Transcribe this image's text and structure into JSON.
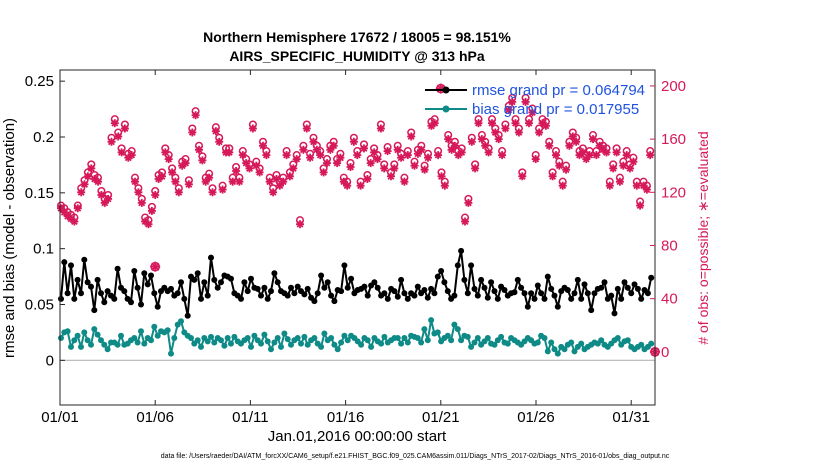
{
  "chart_data": {
    "type": "line",
    "title_line1": "Northern Hemisphere 17672 / 18005 = 98.151%",
    "title_line2": "AIRS_SPECIFIC_HUMIDITY @ 313 hPa",
    "xlabel": "Jan.01,2016 00:00:00 start",
    "ylabel_left": "rmse and bias (model - observation)",
    "ylabel_right": "# of obs: o=possible; ∗=evaluated",
    "x_ticks": [
      {
        "day": 0,
        "label": "01/01"
      },
      {
        "day": 5,
        "label": "01/06"
      },
      {
        "day": 10,
        "label": "01/11"
      },
      {
        "day": 15,
        "label": "01/16"
      },
      {
        "day": 20,
        "label": "01/21"
      },
      {
        "day": 25,
        "label": "01/26"
      },
      {
        "day": 30,
        "label": "01/31"
      }
    ],
    "xlim": [
      0,
      31.25
    ],
    "ylim_left": [
      -0.04,
      0.26
    ],
    "yticks_left": [
      {
        "value": 0,
        "label": "0"
      },
      {
        "value": 0.05,
        "label": "0.05"
      },
      {
        "value": 0.1,
        "label": "0.1"
      },
      {
        "value": 0.15,
        "label": "0.15"
      },
      {
        "value": 0.2,
        "label": "0.2"
      },
      {
        "value": 0.25,
        "label": "0.25"
      }
    ],
    "ylim_right": [
      -40,
      212
    ],
    "yticks_right": [
      {
        "value": 0,
        "label": "0"
      },
      {
        "value": 40,
        "label": "40"
      },
      {
        "value": 80,
        "label": "80"
      },
      {
        "value": 120,
        "label": "120"
      },
      {
        "value": 160,
        "label": "160"
      },
      {
        "value": 200,
        "label": "200"
      }
    ],
    "legend": [
      {
        "name": "rmse",
        "label": "rmse grand pr = 0.064794",
        "color": "#000000"
      },
      {
        "name": "bias",
        "label": "bias grand pr = 0.017955",
        "color": "#0e8a87"
      }
    ],
    "series": [
      {
        "name": "rmse",
        "color": "#000000",
        "values": [
          0.055,
          0.088,
          0.06,
          0.085,
          0.055,
          0.072,
          0.06,
          0.09,
          0.07,
          0.066,
          0.045,
          0.072,
          0.06,
          0.052,
          0.062,
          0.058,
          0.055,
          0.082,
          0.065,
          0.062,
          0.055,
          0.052,
          0.08,
          0.065,
          0.05,
          0.078,
          0.068,
          0.076,
          0.06,
          0.048,
          0.062,
          0.065,
          0.062,
          0.064,
          0.058,
          0.06,
          0.07,
          0.055,
          0.04,
          0.075,
          0.072,
          0.078,
          0.055,
          0.07,
          0.058,
          0.092,
          0.072,
          0.065,
          0.07,
          0.076,
          0.075,
          0.073,
          0.06,
          0.058,
          0.055,
          0.07,
          0.062,
          0.073,
          0.065,
          0.064,
          0.058,
          0.065,
          0.055,
          0.062,
          0.078,
          0.07,
          0.062,
          0.06,
          0.058,
          0.065,
          0.06,
          0.066,
          0.062,
          0.059,
          0.064,
          0.056,
          0.053,
          0.06,
          0.076,
          0.065,
          0.07,
          0.058,
          0.053,
          0.063,
          0.062,
          0.085,
          0.065,
          0.073,
          0.06,
          0.063,
          0.064,
          0.066,
          0.058,
          0.067,
          0.07,
          0.065,
          0.058,
          0.06,
          0.055,
          0.064,
          0.062,
          0.057,
          0.072,
          0.06,
          0.055,
          0.06,
          0.058,
          0.066,
          0.06,
          0.063,
          0.056,
          0.064,
          0.06,
          0.075,
          0.08,
          0.07,
          0.062,
          0.055,
          0.058,
          0.085,
          0.098,
          0.072,
          0.06,
          0.085,
          0.064,
          0.058,
          0.072,
          0.065,
          0.056,
          0.07,
          0.062,
          0.055,
          0.066,
          0.063,
          0.058,
          0.06,
          0.061,
          0.072,
          0.065,
          0.06,
          0.048,
          0.06,
          0.055,
          0.067,
          0.06,
          0.055,
          0.075,
          0.064,
          0.058,
          0.048,
          0.062,
          0.065,
          0.063,
          0.055,
          0.06,
          0.072,
          0.055,
          0.068,
          0.06,
          0.045,
          0.06,
          0.064,
          0.065,
          0.07,
          0.055,
          0.058,
          0.042,
          0.064,
          0.055,
          0.07,
          0.065,
          0.06,
          0.068,
          0.064,
          0.055,
          0.063,
          0.06,
          0.074
        ]
      },
      {
        "name": "bias",
        "color": "#0e8a87",
        "values": [
          0.02,
          0.025,
          0.026,
          0.012,
          0.018,
          0.022,
          0.012,
          0.025,
          0.018,
          0.014,
          0.028,
          0.023,
          0.018,
          0.014,
          0.01,
          0.016,
          0.016,
          0.014,
          0.022,
          0.014,
          0.015,
          0.018,
          0.02,
          0.016,
          0.026,
          0.015,
          0.02,
          0.018,
          0.03,
          0.022,
          0.026,
          0.025,
          0.027,
          0.006,
          0.02,
          0.032,
          0.035,
          0.025,
          0.022,
          0.02,
          0.015,
          0.018,
          0.012,
          0.02,
          0.017,
          0.021,
          0.016,
          0.02,
          0.018,
          0.013,
          0.02,
          0.015,
          0.021,
          0.017,
          0.015,
          0.018,
          0.02,
          0.012,
          0.022,
          0.018,
          0.015,
          0.023,
          0.017,
          0.01,
          0.016,
          0.02,
          0.012,
          0.024,
          0.019,
          0.014,
          0.018,
          0.02,
          0.015,
          0.021,
          0.014,
          0.018,
          0.02,
          0.015,
          0.012,
          0.024,
          0.018,
          0.02,
          0.014,
          0.01,
          0.016,
          0.022,
          0.018,
          0.022,
          0.02,
          0.017,
          0.014,
          0.02,
          0.018,
          0.012,
          0.02,
          0.017,
          0.015,
          0.021,
          0.016,
          0.018,
          0.02,
          0.02,
          0.015,
          0.02,
          0.016,
          0.022,
          0.021,
          0.02,
          0.016,
          0.028,
          0.018,
          0.036,
          0.024,
          0.025,
          0.017,
          0.02,
          0.022,
          0.018,
          0.032,
          0.028,
          0.018,
          0.022,
          0.021,
          0.012,
          0.016,
          0.02,
          0.014,
          0.017,
          0.02,
          0.015,
          0.014,
          0.018,
          0.021,
          0.016,
          0.015,
          0.02,
          0.018,
          0.016,
          0.014,
          0.017,
          0.02,
          0.018,
          0.015,
          0.016,
          0.022,
          0.02,
          0.008,
          0.016,
          0.01,
          0.006,
          0.012,
          0.01,
          0.014,
          0.016,
          0.008,
          0.012,
          0.015,
          0.01,
          0.012,
          0.014,
          0.016,
          0.015,
          0.018,
          0.014,
          0.012,
          0.015,
          0.018,
          0.02,
          0.014,
          0.017,
          0.018,
          0.012,
          0.01,
          0.012,
          0.014,
          0.01,
          0.012,
          0.015
        ]
      }
    ],
    "nobs_evaluated": [
      108,
      105,
      102,
      100,
      98,
      108,
      120,
      126,
      132,
      138,
      130,
      128,
      118,
      112,
      115,
      158,
      172,
      162,
      150,
      168,
      146,
      148,
      128,
      120,
      112,
      98,
      96,
      106,
      118,
      130,
      132,
      150,
      145,
      135,
      128,
      120,
      140,
      142,
      126,
      165,
      178,
      152,
      144,
      128,
      131,
      120,
      166,
      158,
      122,
      150,
      150,
      128,
      136,
      128,
      148,
      142,
      138,
      168,
      140,
      135,
      155,
      148,
      128,
      120,
      130,
      125,
      128,
      148,
      132,
      138,
      145,
      96,
      152,
      168,
      146,
      158,
      152,
      148,
      135,
      142,
      152,
      155,
      142,
      146,
      128,
      125,
      139,
      158,
      148,
      125,
      153,
      130,
      142,
      150,
      145,
      168,
      138,
      151,
      132,
      138,
      152,
      146,
      128,
      148,
      162,
      140,
      149,
      152,
      137,
      146,
      170,
      172,
      148,
      132,
      125,
      160,
      152,
      155,
      148,
      150,
      98,
      112,
      158,
      138,
      172,
      160,
      155,
      150,
      172,
      165,
      160,
      148,
      168,
      182,
      188,
      172,
      165,
      132,
      188,
      172,
      180,
      145,
      165,
      172,
      170,
      155,
      132,
      148,
      140,
      125,
      137,
      155,
      162,
      158,
      148,
      150,
      145,
      148,
      160,
      148,
      155,
      152,
      150,
      125,
      138,
      150,
      128,
      140,
      148,
      138,
      143,
      125,
      110,
      125,
      122,
      148
    ],
    "nobs_possible": [
      110,
      108,
      105,
      103,
      101,
      110,
      123,
      129,
      135,
      141,
      133,
      131,
      121,
      115,
      118,
      161,
      175,
      165,
      153,
      171,
      149,
      151,
      131,
      123,
      115,
      101,
      99,
      109,
      121,
      133,
      135,
      153,
      148,
      138,
      131,
      123,
      143,
      145,
      129,
      168,
      181,
      155,
      147,
      131,
      134,
      123,
      169,
      161,
      125,
      153,
      153,
      131,
      139,
      131,
      151,
      145,
      141,
      171,
      143,
      138,
      158,
      151,
      131,
      123,
      133,
      128,
      131,
      151,
      135,
      141,
      148,
      99,
      155,
      171,
      149,
      161,
      155,
      151,
      138,
      145,
      155,
      158,
      145,
      149,
      131,
      128,
      142,
      161,
      151,
      128,
      156,
      133,
      145,
      153,
      148,
      171,
      141,
      154,
      135,
      141,
      155,
      149,
      131,
      151,
      165,
      143,
      152,
      155,
      140,
      149,
      173,
      175,
      151,
      135,
      128,
      163,
      155,
      158,
      151,
      153,
      101,
      115,
      161,
      141,
      175,
      163,
      158,
      153,
      175,
      168,
      163,
      151,
      171,
      185,
      191,
      175,
      168,
      135,
      191,
      175,
      183,
      148,
      168,
      175,
      173,
      158,
      135,
      151,
      143,
      128,
      140,
      158,
      165,
      161,
      151,
      153,
      148,
      151,
      163,
      151,
      158,
      155,
      153,
      128,
      141,
      153,
      131,
      143,
      151,
      141,
      146,
      128,
      113,
      128,
      125,
      151
    ],
    "extra_markers": [
      {
        "day": 5.0,
        "value": 64
      },
      {
        "day": 20.0,
        "value": 198
      },
      {
        "day": 31.25,
        "value": 0
      }
    ],
    "footer": "data file: /Users/raeder/DAI/ATM_forcXX/CAM6_setup/f.e21.FHIST_BGC.f09_025.CAM6assim.011/Diags_NTrS_2017-02/Diags_NTrS_2016-01/obs_diag_output.nc"
  }
}
